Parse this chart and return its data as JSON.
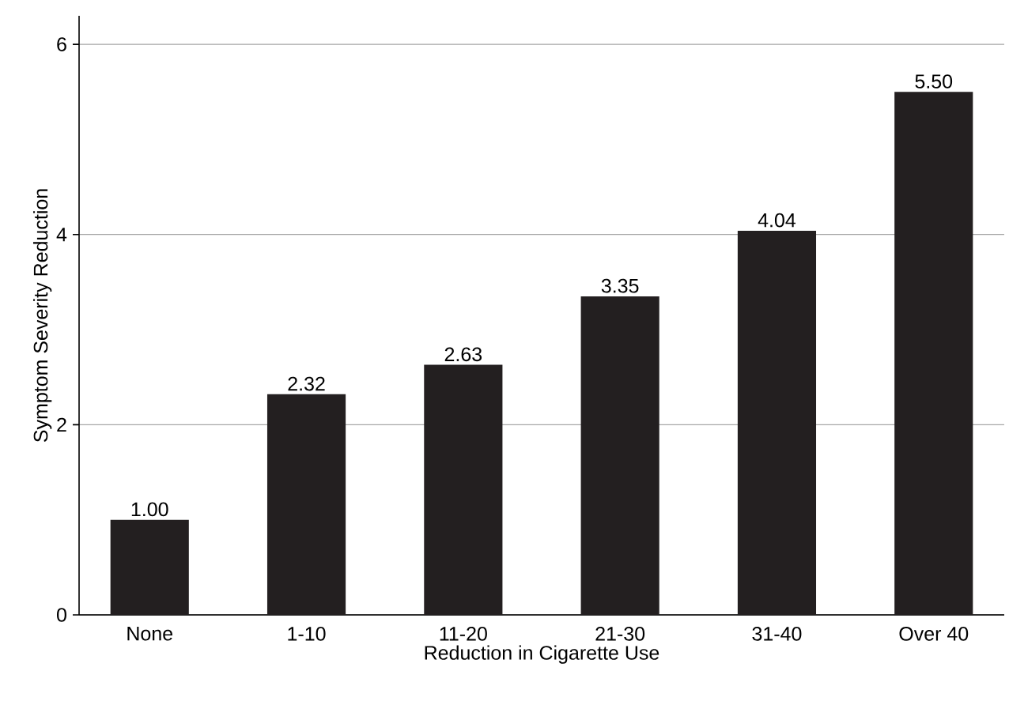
{
  "chart_data": {
    "type": "bar",
    "xlabel": "Reduction in Cigarette Use",
    "ylabel": "Symptom Severity Reduction",
    "categories": [
      "None",
      "1-10",
      "11-20",
      "21-30",
      "31-40",
      "Over 40"
    ],
    "values": [
      1.0,
      2.32,
      2.63,
      3.35,
      4.04,
      5.5
    ],
    "color": "#231f20",
    "value_labels": [
      "1.00",
      "2.32",
      "2.63",
      "3.35",
      "4.04",
      "5.50"
    ],
    "ylim": [
      0,
      6.3
    ],
    "yticks": [
      0,
      2,
      4,
      6
    ],
    "grid": "y"
  }
}
